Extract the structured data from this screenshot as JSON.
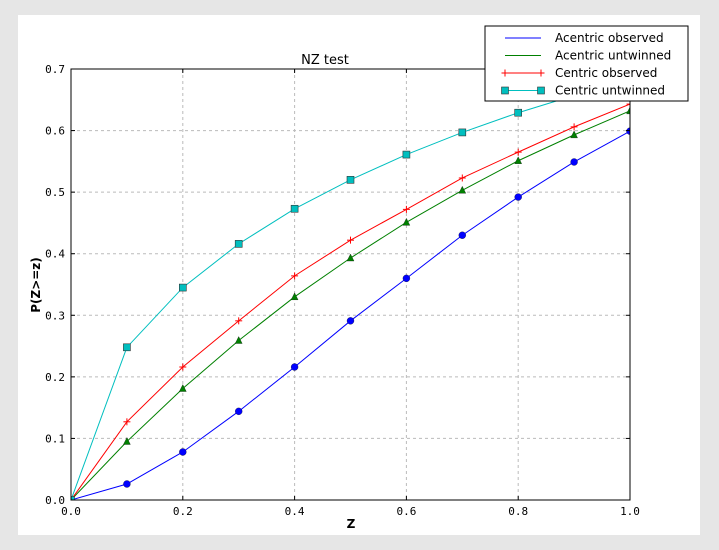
{
  "chart_data": {
    "type": "line",
    "title": "NZ test",
    "xlabel": "Z",
    "ylabel": "P(Z>=z)",
    "xlim": [
      0.0,
      1.0
    ],
    "ylim": [
      0.0,
      0.7
    ],
    "xticks": [
      "0.0",
      "0.2",
      "0.4",
      "0.6",
      "0.8",
      "1.0"
    ],
    "yticks": [
      "0.0",
      "0.1",
      "0.2",
      "0.3",
      "0.4",
      "0.5",
      "0.6",
      "0.7"
    ],
    "grid": true,
    "legend_position": "top-right",
    "x": [
      0.0,
      0.1,
      0.2,
      0.3,
      0.4,
      0.5,
      0.6,
      0.7,
      0.8,
      0.9,
      1.0
    ],
    "series": [
      {
        "name": "Acentric observed",
        "color": "#0000ff",
        "marker": "circle",
        "values": [
          0.0,
          0.026,
          0.078,
          0.144,
          0.216,
          0.291,
          0.36,
          0.43,
          0.492,
          0.549,
          0.599
        ]
      },
      {
        "name": "Acentric untwinned",
        "color": "#008000",
        "marker": "triangle",
        "values": [
          0.0,
          0.095,
          0.181,
          0.259,
          0.33,
          0.393,
          0.451,
          0.503,
          0.551,
          0.593,
          0.632
        ]
      },
      {
        "name": "Centric observed",
        "color": "#ff0000",
        "marker": "plus",
        "values": [
          0.0,
          0.127,
          0.216,
          0.291,
          0.364,
          0.422,
          0.472,
          0.523,
          0.565,
          0.606,
          0.643
        ]
      },
      {
        "name": "Centric untwinned",
        "color": "#00bfbf",
        "marker": "square",
        "values": [
          0.0,
          0.248,
          0.345,
          0.416,
          0.473,
          0.52,
          0.561,
          0.597,
          0.629,
          0.657,
          0.683
        ]
      }
    ]
  }
}
